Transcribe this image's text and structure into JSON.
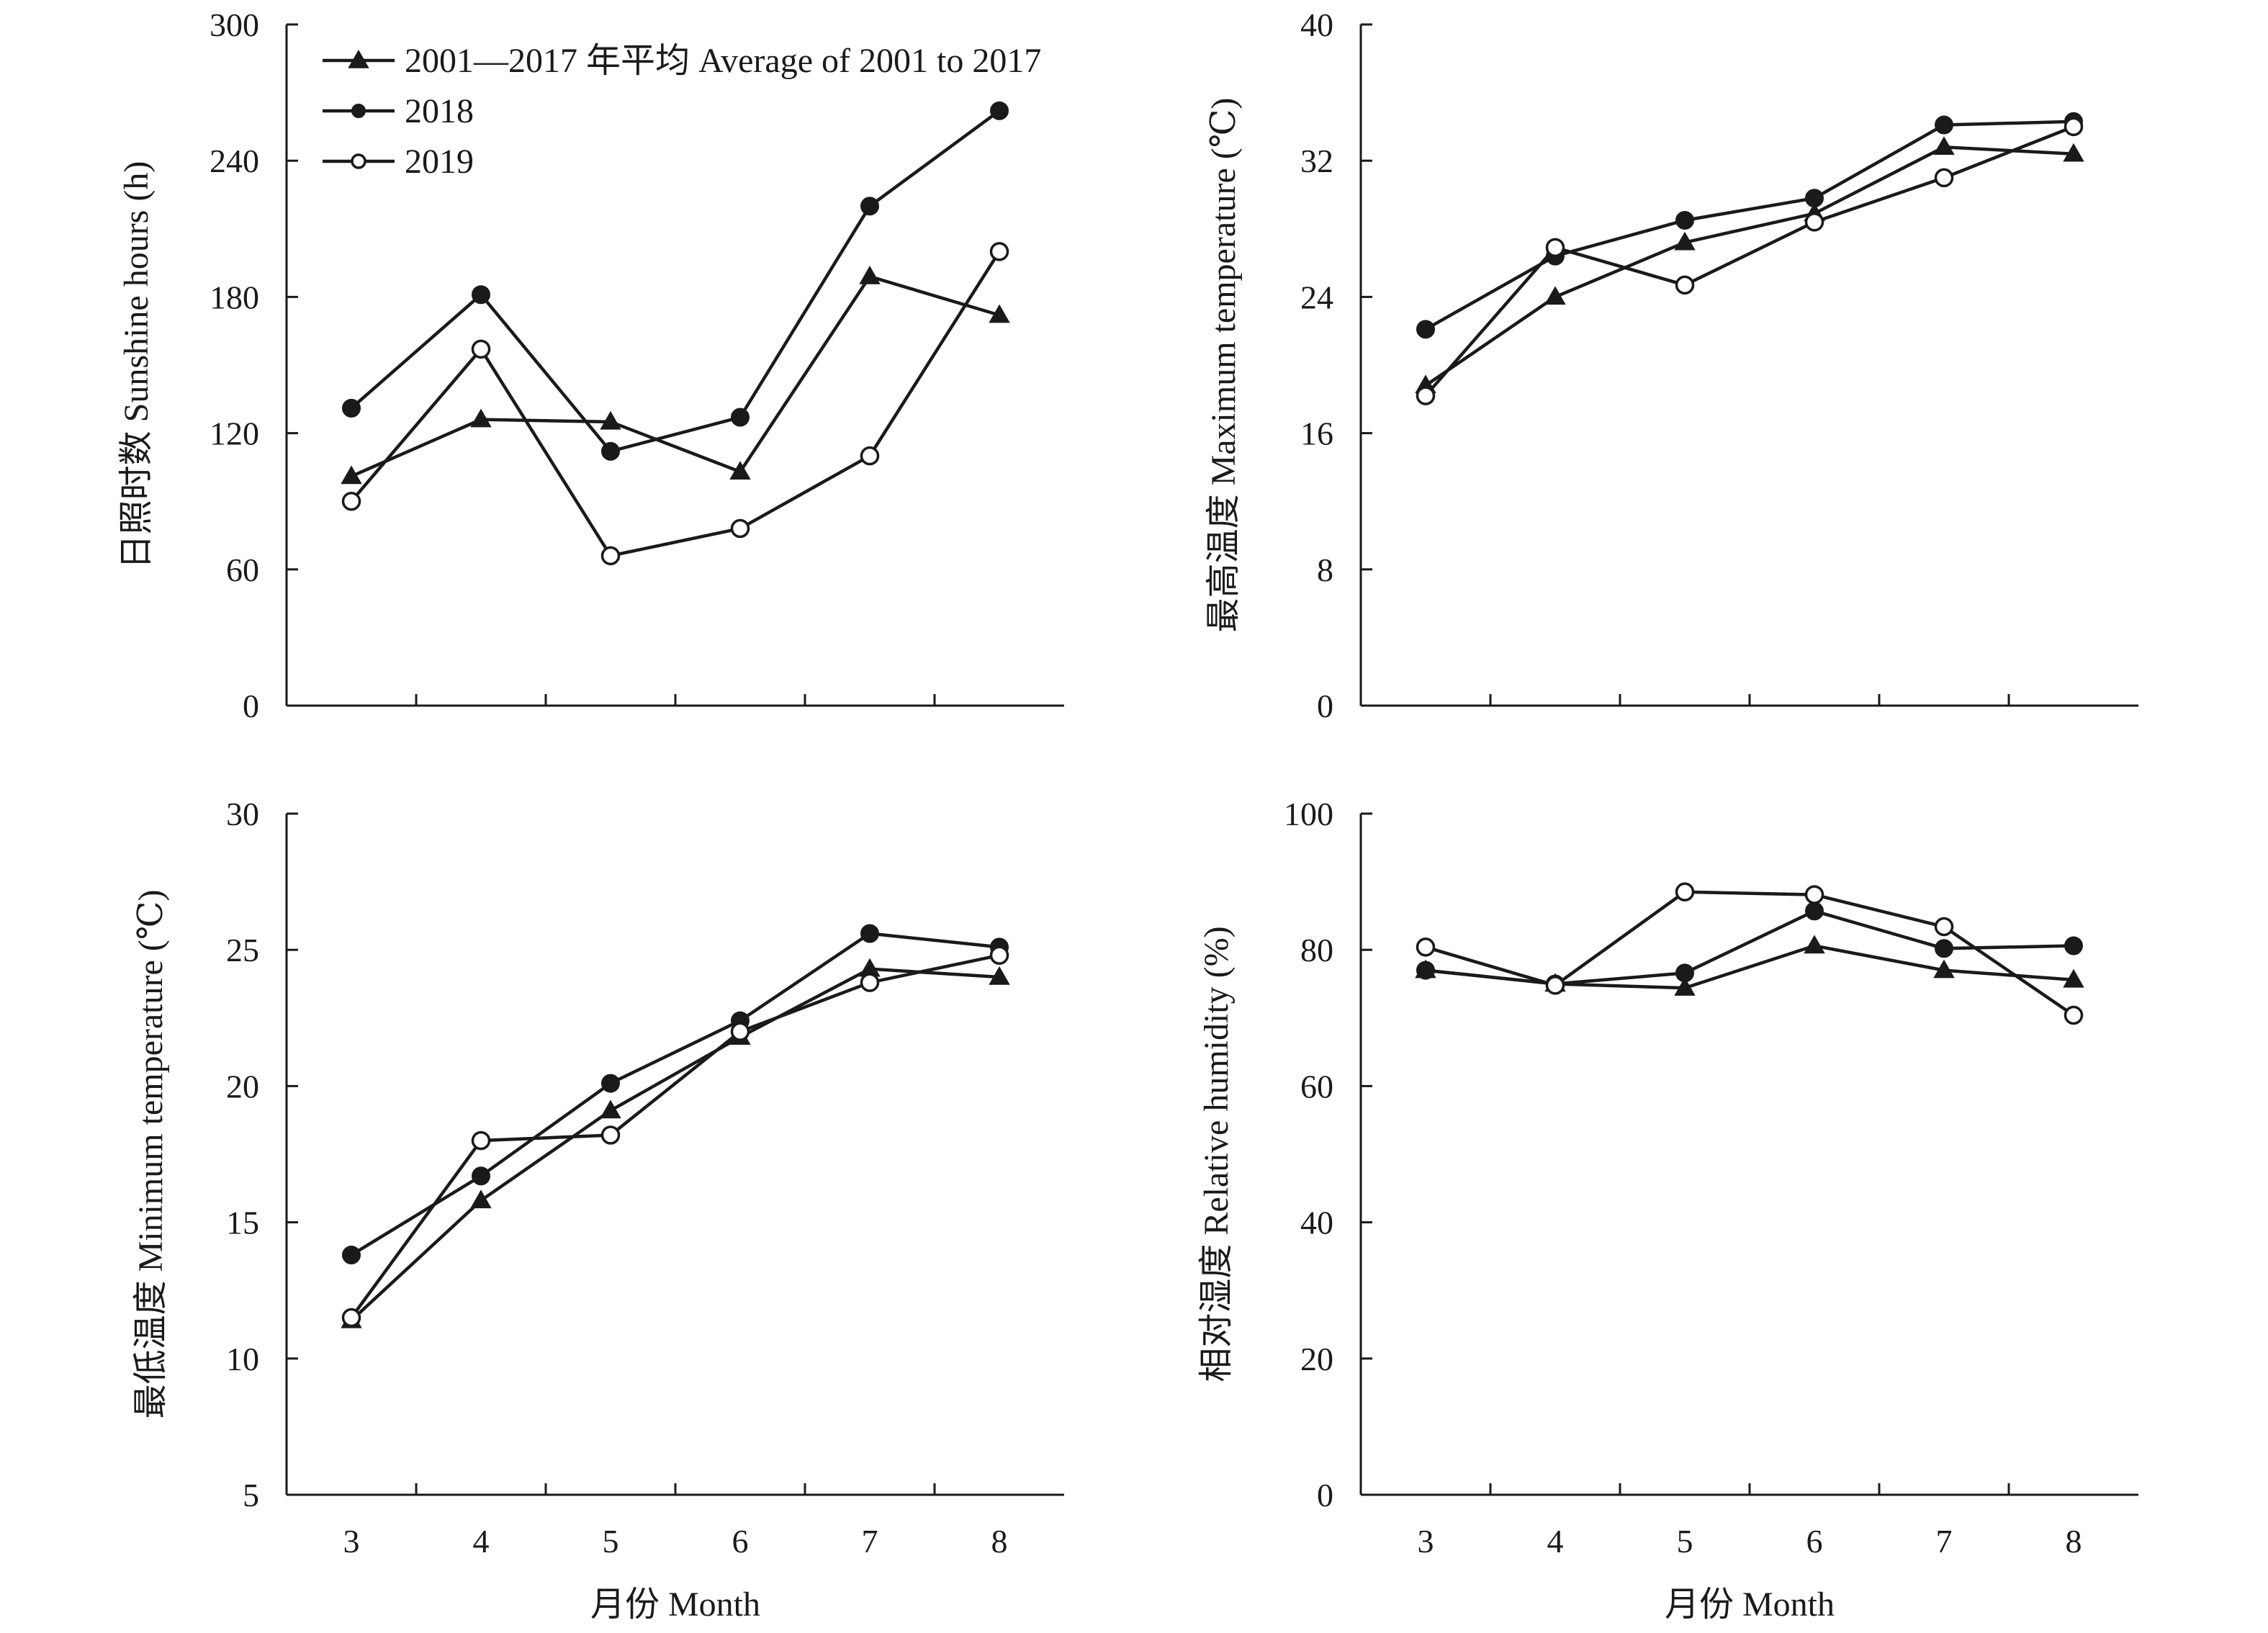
{
  "colors": {
    "ink": "#1a1a1a",
    "open_marker_fill": "#ffffff"
  },
  "legend": {
    "placement": "top-left of first panel",
    "entries": [
      {
        "label": "2001—2017 年平均 Average of 2001 to 2017",
        "marker": "filled-triangle"
      },
      {
        "label": "2018",
        "marker": "filled-circle"
      },
      {
        "label": "2019",
        "marker": "open-circle"
      }
    ]
  },
  "chart_data": [
    {
      "type": "line",
      "ylabel": "日照时数 Sunshine hours (h)",
      "xlabel": "",
      "x": [
        3,
        4,
        5,
        6,
        7,
        8
      ],
      "xticks": [
        "3",
        "4",
        "5",
        "6",
        "7",
        "8"
      ],
      "show_xticklabels": false,
      "ylim": [
        0,
        300
      ],
      "yticks": [
        "0",
        "60",
        "120",
        "180",
        "240",
        "300"
      ],
      "grid": false,
      "series": [
        {
          "name": "2001—2017 年平均 Average of 2001 to 2017",
          "marker": "filled-triangle",
          "values": [
            101,
            126,
            125,
            103,
            189,
            172
          ]
        },
        {
          "name": "2018",
          "marker": "filled-circle",
          "values": [
            131,
            181,
            112,
            127,
            220,
            262
          ]
        },
        {
          "name": "2019",
          "marker": "open-circle",
          "values": [
            90,
            157,
            66,
            78,
            110,
            200
          ]
        }
      ]
    },
    {
      "type": "line",
      "ylabel": "最高温度 Maximum temperature (℃)",
      "xlabel": "",
      "x": [
        3,
        4,
        5,
        6,
        7,
        8
      ],
      "xticks": [
        "3",
        "4",
        "5",
        "6",
        "7",
        "8"
      ],
      "show_xticklabels": false,
      "ylim": [
        0,
        40
      ],
      "yticks": [
        "0",
        "8",
        "16",
        "24",
        "32",
        "40"
      ],
      "grid": false,
      "series": [
        {
          "name": "2001—2017 年平均 Average of 2001 to 2017",
          "marker": "filled-triangle",
          "values": [
            18.8,
            24.0,
            27.2,
            28.9,
            32.8,
            32.4
          ]
        },
        {
          "name": "2018",
          "marker": "filled-circle",
          "values": [
            22.1,
            26.4,
            28.5,
            29.8,
            34.1,
            34.3
          ]
        },
        {
          "name": "2019",
          "marker": "open-circle",
          "values": [
            18.2,
            26.9,
            24.7,
            28.4,
            31.0,
            34.0
          ]
        }
      ]
    },
    {
      "type": "line",
      "ylabel": "最低温度 Minimum temperature (℃)",
      "xlabel": "月份 Month",
      "x": [
        3,
        4,
        5,
        6,
        7,
        8
      ],
      "xticks": [
        "3",
        "4",
        "5",
        "6",
        "7",
        "8"
      ],
      "show_xticklabels": true,
      "ylim": [
        5,
        30
      ],
      "yticks": [
        "5",
        "10",
        "15",
        "20",
        "25",
        "30"
      ],
      "grid": false,
      "series": [
        {
          "name": "2001—2017 年平均 Average of 2001 to 2017",
          "marker": "filled-triangle",
          "values": [
            11.4,
            15.8,
            19.1,
            21.8,
            24.3,
            24.0
          ]
        },
        {
          "name": "2018",
          "marker": "filled-circle",
          "values": [
            13.8,
            16.7,
            20.1,
            22.4,
            25.6,
            25.1
          ]
        },
        {
          "name": "2019",
          "marker": "open-circle",
          "values": [
            11.5,
            18.0,
            18.2,
            22.0,
            23.8,
            24.8
          ]
        }
      ]
    },
    {
      "type": "line",
      "ylabel": "相对湿度 Relative humidity (%)",
      "xlabel": "月份 Month",
      "x": [
        3,
        4,
        5,
        6,
        7,
        8
      ],
      "xticks": [
        "3",
        "4",
        "5",
        "6",
        "7",
        "8"
      ],
      "show_xticklabels": true,
      "ylim": [
        0,
        100
      ],
      "yticks": [
        "0",
        "20",
        "40",
        "60",
        "80",
        "100"
      ],
      "grid": false,
      "series": [
        {
          "name": "2001—2017 年平均 Average of 2001 to 2017",
          "marker": "filled-triangle",
          "values": [
            77.0,
            75.0,
            74.4,
            80.6,
            77.0,
            75.6
          ]
        },
        {
          "name": "2018",
          "marker": "filled-circle",
          "values": [
            77.0,
            75.0,
            76.6,
            85.7,
            80.2,
            80.6
          ]
        },
        {
          "name": "2019",
          "marker": "open-circle",
          "values": [
            80.4,
            74.8,
            88.5,
            88.1,
            83.4,
            70.4
          ]
        }
      ]
    }
  ]
}
